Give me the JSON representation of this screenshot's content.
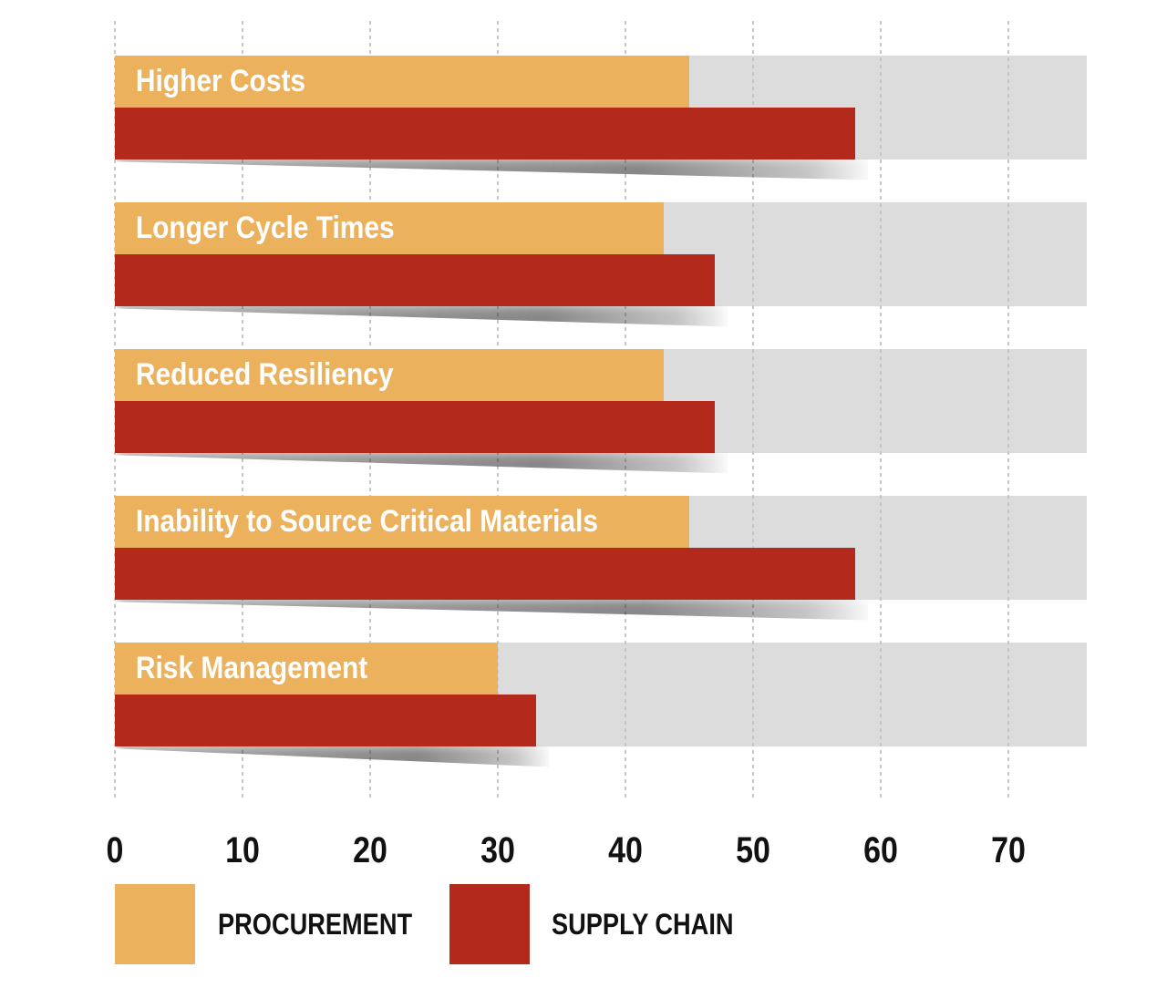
{
  "chart_data": {
    "type": "bar",
    "orientation": "horizontal",
    "title": "",
    "categories": [
      "Higher Costs",
      "Longer Cycle Times",
      "Reduced Resiliency",
      "Inability to Source Critical Materials",
      "Risk Management"
    ],
    "series": [
      {
        "name": "PROCUREMENT",
        "color": "#ECB15C",
        "values": [
          45,
          43,
          43,
          45,
          30
        ]
      },
      {
        "name": "SUPPLY CHAIN",
        "color": "#B32A1D",
        "values": [
          58,
          47,
          47,
          58,
          33
        ]
      }
    ],
    "x_ticks": [
      0,
      10,
      20,
      30,
      40,
      50,
      60,
      70
    ],
    "xlim": [
      0,
      76
    ],
    "grid": "vertical-dashed",
    "grid_color": "#c6c6c6",
    "track_color": "#DCDCDC",
    "bar_label_color": "#ffffff",
    "legend_position": "bottom"
  }
}
